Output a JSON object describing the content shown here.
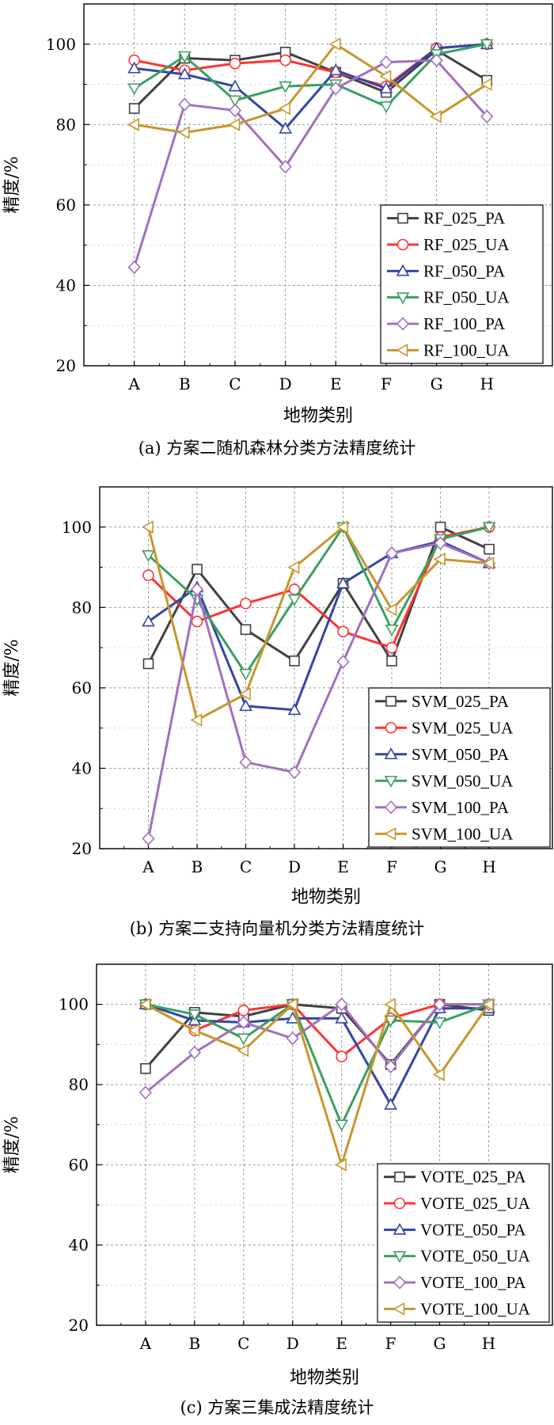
{
  "chart_data": [
    {
      "type": "line",
      "caption": "(a) 方案二随机森林分类方法精度统计",
      "xlabel": "地物类别",
      "ylabel": "精度/%",
      "categories": [
        "A",
        "B",
        "C",
        "D",
        "E",
        "F",
        "G",
        "H"
      ],
      "ylim": [
        20,
        110
      ],
      "yticks": [
        20,
        40,
        60,
        80,
        100
      ],
      "grid": true,
      "legend_position": "bottom-right",
      "series": [
        {
          "name": "RF_025_PA",
          "color": "#404040",
          "marker": "square",
          "values": [
            84,
            96.5,
            96,
            98,
            93,
            88,
            98.5,
            91
          ]
        },
        {
          "name": "RF_025_UA",
          "color": "#ff3333",
          "marker": "circle",
          "values": [
            96,
            93.5,
            95.2,
            96,
            93,
            89.5,
            99,
            100
          ]
        },
        {
          "name": "RF_050_PA",
          "color": "#3346a6",
          "marker": "triangle-up",
          "values": [
            94,
            92.5,
            89.5,
            79,
            93.5,
            89,
            99,
            100
          ]
        },
        {
          "name": "RF_050_UA",
          "color": "#3aa060",
          "marker": "triangle-down",
          "values": [
            89,
            97,
            86,
            89.5,
            90,
            84.5,
            97.5,
            100
          ]
        },
        {
          "name": "RF_100_PA",
          "color": "#a070c0",
          "marker": "diamond",
          "values": [
            44.5,
            85,
            83.5,
            69.5,
            89,
            95.5,
            96,
            82
          ]
        },
        {
          "name": "RF_100_UA",
          "color": "#c8962e",
          "marker": "triangle-left",
          "values": [
            80,
            78,
            80,
            84,
            100,
            92,
            82,
            90
          ]
        }
      ]
    },
    {
      "type": "line",
      "caption": "(b) 方案二支持向量机分类方法精度统计",
      "xlabel": "地物类别",
      "ylabel": "精度/%",
      "categories": [
        "A",
        "B",
        "C",
        "D",
        "E",
        "F",
        "G",
        "H"
      ],
      "ylim": [
        20,
        110
      ],
      "yticks": [
        20,
        40,
        60,
        80,
        100
      ],
      "grid": true,
      "legend_position": "bottom-right",
      "series": [
        {
          "name": "SVM_025_PA",
          "color": "#404040",
          "marker": "square",
          "values": [
            66,
            89.5,
            74.5,
            66.7,
            86,
            66.7,
            100,
            94.5
          ]
        },
        {
          "name": "SVM_025_UA",
          "color": "#ff3333",
          "marker": "circle",
          "values": [
            88,
            76.5,
            81,
            84.5,
            74,
            70,
            97.5,
            100
          ]
        },
        {
          "name": "SVM_050_PA",
          "color": "#3346a6",
          "marker": "triangle-up",
          "values": [
            76.5,
            85,
            55.5,
            54.5,
            86,
            93.5,
            96.5,
            91
          ]
        },
        {
          "name": "SVM_050_UA",
          "color": "#3aa060",
          "marker": "triangle-down",
          "values": [
            93,
            82,
            63.5,
            82,
            100,
            74.5,
            97,
            100
          ]
        },
        {
          "name": "SVM_100_PA",
          "color": "#a070c0",
          "marker": "diamond",
          "values": [
            22.5,
            84.5,
            41.5,
            39,
            66.5,
            93.5,
            96,
            91
          ]
        },
        {
          "name": "SVM_100_UA",
          "color": "#c8962e",
          "marker": "triangle-left",
          "values": [
            100,
            52,
            58.5,
            90,
            100,
            79.5,
            92,
            91
          ]
        }
      ]
    },
    {
      "type": "line",
      "caption": "(c) 方案三集成法精度统计",
      "xlabel": "地物类别",
      "ylabel": "精度/%",
      "categories": [
        "A",
        "B",
        "C",
        "D",
        "E",
        "F",
        "G",
        "H"
      ],
      "ylim": [
        20,
        110
      ],
      "yticks": [
        20,
        40,
        60,
        80,
        100
      ],
      "grid": true,
      "legend_position": "bottom-right",
      "series": [
        {
          "name": "VOTE_025_PA",
          "color": "#404040",
          "marker": "square",
          "values": [
            84,
            98,
            97,
            100,
            99,
            85,
            100,
            98.5
          ]
        },
        {
          "name": "VOTE_025_UA",
          "color": "#ff3333",
          "marker": "circle",
          "values": [
            100,
            93.5,
            98.5,
            100,
            87,
            96.5,
            100,
            100
          ]
        },
        {
          "name": "VOTE_050_PA",
          "color": "#3346a6",
          "marker": "triangle-up",
          "values": [
            100,
            96,
            95.5,
            96.5,
            96.5,
            75,
            99,
            99
          ]
        },
        {
          "name": "VOTE_050_UA",
          "color": "#3aa060",
          "marker": "triangle-down",
          "values": [
            100,
            97.5,
            91.5,
            100,
            70,
            96,
            95.5,
            100
          ]
        },
        {
          "name": "VOTE_100_PA",
          "color": "#a070c0",
          "marker": "diamond",
          "values": [
            78,
            88,
            95.5,
            91.5,
            100,
            84.5,
            100,
            100
          ]
        },
        {
          "name": "VOTE_100_UA",
          "color": "#c8962e",
          "marker": "triangle-left",
          "values": [
            100,
            93.5,
            88.5,
            100,
            60,
            100,
            82.5,
            100
          ]
        }
      ]
    }
  ]
}
